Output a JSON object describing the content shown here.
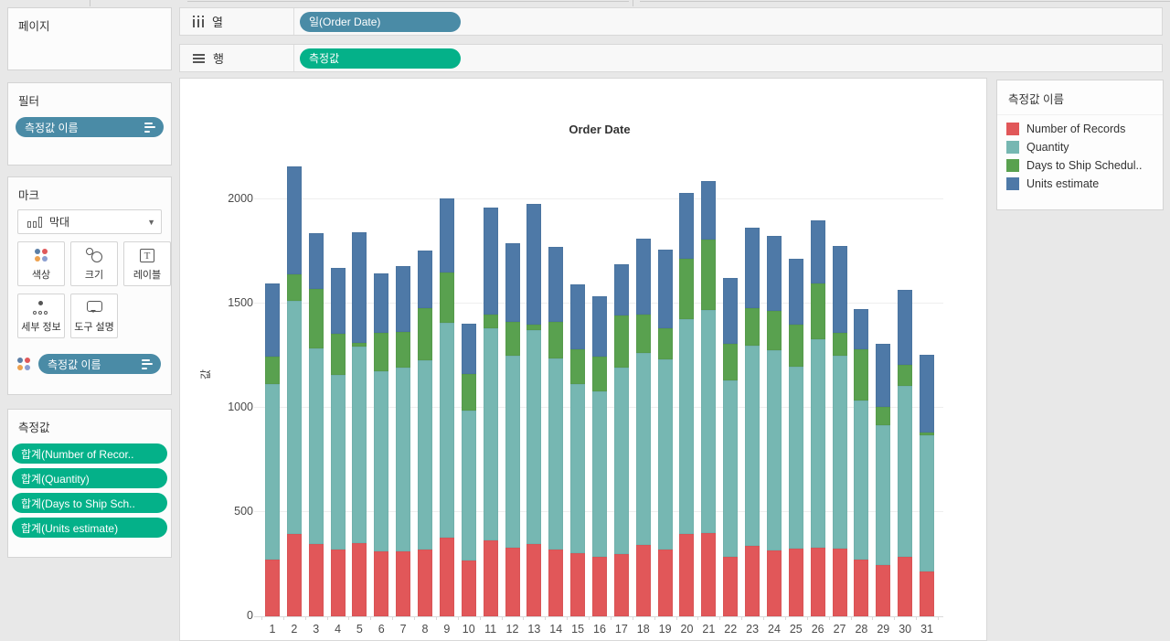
{
  "shelves": {
    "columns_label": "열",
    "rows_label": "행",
    "columns_pill": "일(Order Date)",
    "rows_pill": "측정값"
  },
  "panels": {
    "pages": {
      "title": "페이지"
    },
    "filters": {
      "title": "필터",
      "pill": "측정값 이름"
    },
    "marks": {
      "title": "마크",
      "mark_type": "막대",
      "buttons": [
        {
          "label": "색상"
        },
        {
          "label": "크기"
        },
        {
          "label": "레이블"
        },
        {
          "label": "세부 정보"
        },
        {
          "label": "도구 설명"
        }
      ],
      "color_pill": "측정값 이름"
    },
    "measure_values": {
      "title": "측정값",
      "pills": [
        "합계(Number of Recor..",
        "합계(Quantity)",
        "합계(Days to Ship Sch..",
        "합계(Units estimate)"
      ]
    }
  },
  "legend": {
    "title": "측정값 이름",
    "items": [
      {
        "label": "Number of Records",
        "color": "#e15759"
      },
      {
        "label": "Quantity",
        "color": "#76b7b2"
      },
      {
        "label": "Days to Ship Schedul..",
        "color": "#59a14f"
      },
      {
        "label": "Units estimate",
        "color": "#4e79a7"
      }
    ]
  },
  "chart_data": {
    "type": "bar",
    "stacked": true,
    "title": "Order Date",
    "xlabel": "",
    "ylabel": "값",
    "categories": [
      "1",
      "2",
      "3",
      "4",
      "5",
      "6",
      "7",
      "8",
      "9",
      "10",
      "11",
      "12",
      "13",
      "14",
      "15",
      "16",
      "17",
      "18",
      "19",
      "20",
      "21",
      "22",
      "23",
      "24",
      "25",
      "26",
      "27",
      "28",
      "29",
      "30",
      "31"
    ],
    "series": [
      {
        "name": "Number of Records",
        "color": "#e15759",
        "values": [
          272,
          394,
          348,
          319,
          352,
          310,
          310,
          322,
          377,
          268,
          362,
          331,
          348,
          322,
          304,
          287,
          300,
          341,
          322,
          394,
          397,
          287,
          336,
          316,
          324,
          331,
          323,
          272,
          246,
          283,
          214
        ]
      },
      {
        "name": "Quantity",
        "color": "#76b7b2",
        "values": [
          840,
          1121,
          935,
          840,
          941,
          864,
          881,
          906,
          1032,
          719,
          1018,
          918,
          1025,
          917,
          812,
          791,
          891,
          923,
          910,
          1030,
          1073,
          846,
          964,
          961,
          874,
          999,
          926,
          762,
          671,
          823,
          656
        ]
      },
      {
        "name": "Days to Ship Schedul..",
        "color": "#59a14f",
        "values": [
          134,
          124,
          289,
          195,
          20,
          187,
          175,
          250,
          242,
          175,
          66,
          165,
          25,
          173,
          163,
          169,
          250,
          182,
          148,
          291,
          335,
          175,
          179,
          190,
          200,
          268,
          110,
          245,
          88,
          99,
          10
        ]
      },
      {
        "name": "Units estimate",
        "color": "#4e79a7",
        "values": [
          352,
          521,
          266,
          317,
          530,
          285,
          312,
          277,
          355,
          240,
          516,
          374,
          580,
          358,
          312,
          286,
          248,
          366,
          381,
          317,
          281,
          317,
          384,
          357,
          317,
          303,
          417,
          196,
          302,
          363,
          376
        ]
      }
    ],
    "yticks": [
      0,
      500,
      1000,
      1500,
      2000
    ],
    "ylim": [
      0,
      2206
    ],
    "grid": true,
    "legend_position": "right"
  }
}
